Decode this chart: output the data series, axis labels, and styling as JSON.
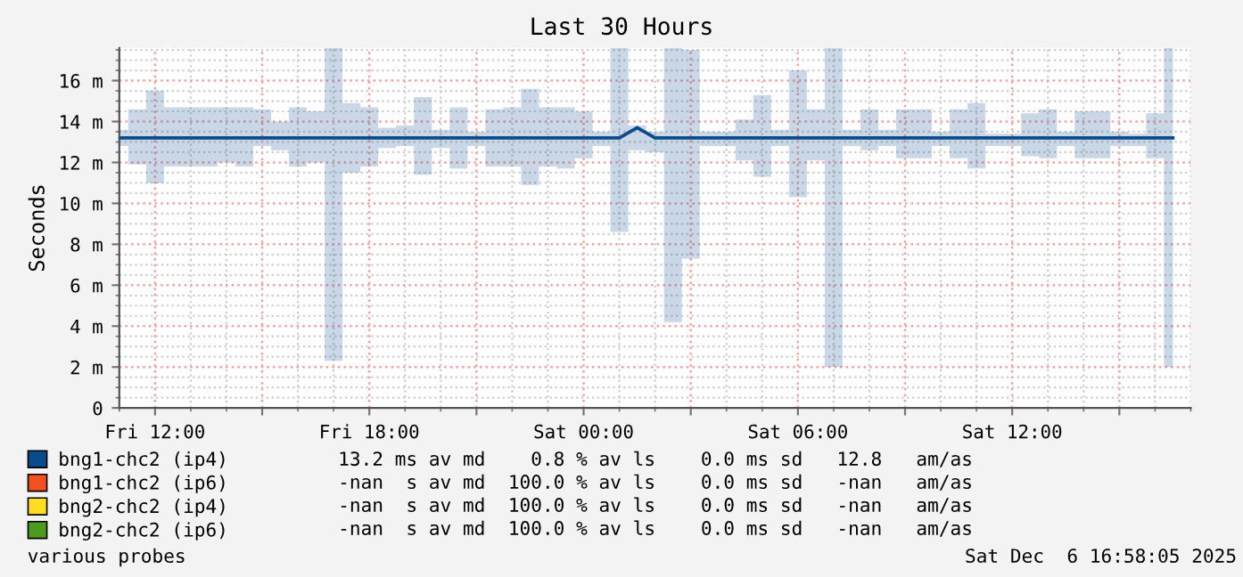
{
  "chart_data": {
    "type": "line",
    "title": "Last 30 Hours",
    "ylabel": "Seconds",
    "x": [
      "2025-12-05T11:00",
      "2025-12-05T11:30",
      "2025-12-05T12:00",
      "2025-12-05T12:30",
      "2025-12-05T13:00",
      "2025-12-05T13:30",
      "2025-12-05T14:00",
      "2025-12-05T14:30",
      "2025-12-05T15:00",
      "2025-12-05T15:30",
      "2025-12-05T16:00",
      "2025-12-05T16:30",
      "2025-12-05T17:00",
      "2025-12-05T17:30",
      "2025-12-05T18:00",
      "2025-12-05T18:30",
      "2025-12-05T19:00",
      "2025-12-05T19:30",
      "2025-12-05T20:00",
      "2025-12-05T20:30",
      "2025-12-05T21:00",
      "2025-12-05T21:30",
      "2025-12-05T22:00",
      "2025-12-05T22:30",
      "2025-12-05T23:00",
      "2025-12-05T23:30",
      "2025-12-06T00:00",
      "2025-12-06T00:30",
      "2025-12-06T01:00",
      "2025-12-06T01:30",
      "2025-12-06T02:00",
      "2025-12-06T02:30",
      "2025-12-06T03:00",
      "2025-12-06T03:30",
      "2025-12-06T04:00",
      "2025-12-06T04:30",
      "2025-12-06T05:00",
      "2025-12-06T05:30",
      "2025-12-06T06:00",
      "2025-12-06T06:30",
      "2025-12-06T07:00",
      "2025-12-06T07:30",
      "2025-12-06T08:00",
      "2025-12-06T08:30",
      "2025-12-06T09:00",
      "2025-12-06T09:30",
      "2025-12-06T10:00",
      "2025-12-06T10:30",
      "2025-12-06T11:00",
      "2025-12-06T11:30",
      "2025-12-06T12:00",
      "2025-12-06T12:30",
      "2025-12-06T13:00",
      "2025-12-06T13:30",
      "2025-12-06T14:00",
      "2025-12-06T14:30",
      "2025-12-06T15:00",
      "2025-12-06T15:30",
      "2025-12-06T16:00",
      "2025-12-06T16:30"
    ],
    "series": [
      {
        "name": "bng1-chc2 (ip4)",
        "color": "#0b4a8b",
        "values": [
          13.2,
          13.2,
          13.2,
          13.2,
          13.2,
          13.2,
          13.2,
          13.2,
          13.2,
          13.2,
          13.2,
          13.2,
          13.2,
          13.2,
          13.2,
          13.2,
          13.2,
          13.2,
          13.2,
          13.2,
          13.2,
          13.2,
          13.2,
          13.2,
          13.2,
          13.2,
          13.2,
          13.2,
          13.2,
          13.7,
          13.2,
          13.2,
          13.2,
          13.2,
          13.2,
          13.2,
          13.2,
          13.2,
          13.2,
          13.2,
          13.2,
          13.2,
          13.2,
          13.2,
          13.2,
          13.2,
          13.2,
          13.2,
          13.2,
          13.2,
          13.2,
          13.2,
          13.2,
          13.2,
          13.2,
          13.2,
          13.2,
          13.2,
          13.2,
          13.2
        ],
        "lower": [
          12.8,
          11.9,
          11.0,
          11.8,
          11.8,
          11.8,
          12.0,
          11.8,
          12.8,
          12.6,
          11.8,
          12.0,
          2.3,
          11.5,
          11.8,
          12.7,
          12.8,
          11.4,
          12.7,
          11.7,
          12.8,
          11.8,
          11.8,
          10.9,
          11.8,
          11.7,
          12.2,
          12.8,
          8.6,
          12.6,
          12.5,
          4.2,
          7.3,
          12.8,
          12.8,
          12.1,
          11.3,
          12.8,
          10.3,
          12.1,
          2.0,
          12.8,
          12.6,
          12.8,
          12.2,
          12.2,
          12.8,
          12.2,
          11.7,
          12.8,
          12.8,
          12.3,
          12.2,
          12.8,
          12.2,
          12.2,
          12.8,
          12.8,
          12.2,
          2.0
        ],
        "upper": [
          13.6,
          14.6,
          15.5,
          14.7,
          14.7,
          14.7,
          14.7,
          14.7,
          14.6,
          14.0,
          14.7,
          14.5,
          17.6,
          14.9,
          14.7,
          13.7,
          13.8,
          15.2,
          13.6,
          14.7,
          13.5,
          14.6,
          14.7,
          15.6,
          14.7,
          14.7,
          14.5,
          13.5,
          17.6,
          13.8,
          13.5,
          17.6,
          17.5,
          13.5,
          13.5,
          14.1,
          15.3,
          13.6,
          16.5,
          14.6,
          17.6,
          13.6,
          14.6,
          13.6,
          14.6,
          14.6,
          13.5,
          14.6,
          14.9,
          13.4,
          13.4,
          14.4,
          14.6,
          13.5,
          14.5,
          14.5,
          13.5,
          13.4,
          14.4,
          17.6
        ]
      },
      {
        "name": "bng1-chc2 (ip6)",
        "color": "#f2501f",
        "values": [
          null,
          null,
          null,
          null,
          null,
          null,
          null,
          null,
          null,
          null,
          null,
          null,
          null,
          null,
          null,
          null,
          null,
          null,
          null,
          null,
          null,
          null,
          null,
          null,
          null,
          null,
          null,
          null,
          null,
          null,
          null,
          null,
          null,
          null,
          null,
          null,
          null,
          null,
          null,
          null,
          null,
          null,
          null,
          null,
          null,
          null,
          null,
          null,
          null,
          null,
          null,
          null,
          null,
          null,
          null,
          null,
          null,
          null,
          null,
          null
        ]
      },
      {
        "name": "bng2-chc2 (ip4)",
        "color": "#ffdd22",
        "values": [
          null,
          null,
          null,
          null,
          null,
          null,
          null,
          null,
          null,
          null,
          null,
          null,
          null,
          null,
          null,
          null,
          null,
          null,
          null,
          null,
          null,
          null,
          null,
          null,
          null,
          null,
          null,
          null,
          null,
          null,
          null,
          null,
          null,
          null,
          null,
          null,
          null,
          null,
          null,
          null,
          null,
          null,
          null,
          null,
          null,
          null,
          null,
          null,
          null,
          null,
          null,
          null,
          null,
          null,
          null,
          null,
          null,
          null,
          null,
          null
        ]
      },
      {
        "name": "bng2-chc2 (ip6)",
        "color": "#4c9a1e",
        "values": [
          null,
          null,
          null,
          null,
          null,
          null,
          null,
          null,
          null,
          null,
          null,
          null,
          null,
          null,
          null,
          null,
          null,
          null,
          null,
          null,
          null,
          null,
          null,
          null,
          null,
          null,
          null,
          null,
          null,
          null,
          null,
          null,
          null,
          null,
          null,
          null,
          null,
          null,
          null,
          null,
          null,
          null,
          null,
          null,
          null,
          null,
          null,
          null,
          null,
          null,
          null,
          null,
          null,
          null,
          null,
          null,
          null,
          null,
          null,
          null
        ]
      }
    ],
    "xlim": [
      "2025-12-05T11:00",
      "2025-12-06T17:00"
    ],
    "xticks": [
      {
        "value": "2025-12-05T12:00",
        "label": "Fri 12:00"
      },
      {
        "value": "2025-12-05T15:00",
        "label": null
      },
      {
        "value": "2025-12-05T18:00",
        "label": "Fri 18:00"
      },
      {
        "value": "2025-12-05T21:00",
        "label": null
      },
      {
        "value": "2025-12-06T00:00",
        "label": "Sat 00:00"
      },
      {
        "value": "2025-12-06T03:00",
        "label": null
      },
      {
        "value": "2025-12-06T06:00",
        "label": "Sat 06:00"
      },
      {
        "value": "2025-12-06T09:00",
        "label": null
      },
      {
        "value": "2025-12-06T12:00",
        "label": "Sat 12:00"
      },
      {
        "value": "2025-12-06T15:00",
        "label": null
      }
    ],
    "ylim": [
      0,
      17.6
    ],
    "yticks": [
      0,
      {
        "value": 2,
        "label": "2 m"
      },
      {
        "value": 4,
        "label": "4 m"
      },
      {
        "value": 6,
        "label": "6 m"
      },
      {
        "value": 8,
        "label": "8 m"
      },
      {
        "value": 10,
        "label": "10 m"
      },
      {
        "value": 12,
        "label": "12 m"
      },
      {
        "value": 14,
        "label": "14 m"
      },
      {
        "value": 16,
        "label": "16 m"
      }
    ],
    "grid": true,
    "legend": "bottom",
    "line_style": "solid",
    "marker": "none",
    "annotations": [
      "13.2 ms av md    0.8 % av ls    0.0 ms sd   12.8   am/as",
      "-nan  s av md  100.0 % av ls    0.0 ms sd   -nan   am/as",
      "-nan  s av md  100.0 % av ls    0.0 ms sd   -nan   am/as",
      "-nan  s av md  100.0 % av ls    0.0 ms sd   -nan   am/as",
      "various probes",
      "Sat Dec  6 16:58:05 2025"
    ]
  }
}
